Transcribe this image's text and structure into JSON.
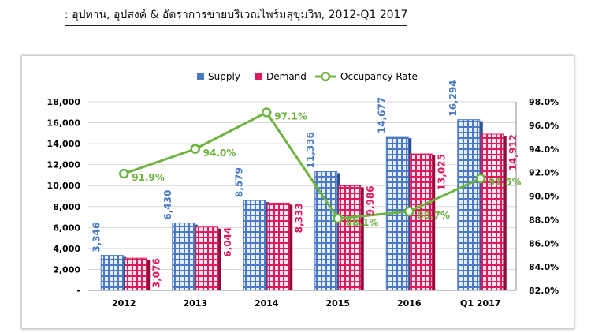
{
  "header": {
    "caption": ": อุปทาน, อุปสงค์ & อัตราการขายบริเวณไพร์มสุขุมวิท, 2012-Q1 2017"
  },
  "colors": {
    "supply": "#4a7ac6",
    "demand": "#e0195a",
    "occupancy": "#6db33f",
    "grid": "#d9d9d9"
  },
  "chart_data": {
    "type": "bar",
    "categories": [
      "2012",
      "2013",
      "2014",
      "2015",
      "2016",
      "Q1 2017"
    ],
    "series": [
      {
        "name": "Supply",
        "values": [
          3346,
          6430,
          8579,
          11336,
          14677,
          16294
        ],
        "labels": [
          "3,346",
          "6,430",
          "8,579",
          "11,336",
          "14,677",
          "16,294"
        ],
        "axis": "left"
      },
      {
        "name": "Demand",
        "values": [
          3076,
          6044,
          8333,
          9986,
          13025,
          14912
        ],
        "labels": [
          "3,076",
          "6,044",
          "8,333",
          "9,986",
          "13,025",
          "14,912"
        ],
        "axis": "left"
      },
      {
        "name": "Occupancy Rate",
        "type": "line",
        "values": [
          91.9,
          94.0,
          97.1,
          88.1,
          88.7,
          91.5
        ],
        "labels": [
          "91.9%",
          "94.0%",
          "97.1%",
          "88.1%",
          "88.7%",
          "91.5%"
        ],
        "axis": "right"
      }
    ],
    "y_left": {
      "ylim": [
        0,
        18000
      ],
      "ticks": [
        "-",
        "2,000",
        "4,000",
        "6,000",
        "8,000",
        "10,000",
        "12,000",
        "14,000",
        "16,000",
        "18,000"
      ]
    },
    "y_right": {
      "ylim": [
        82,
        98
      ],
      "ticks": [
        "82.0%",
        "84.0%",
        "86.0%",
        "88.0%",
        "90.0%",
        "92.0%",
        "94.0%",
        "96.0%",
        "98.0%"
      ]
    },
    "legend": {
      "position": "top",
      "items": [
        "Supply",
        "Demand",
        "Occupancy Rate"
      ]
    },
    "grid": true
  }
}
